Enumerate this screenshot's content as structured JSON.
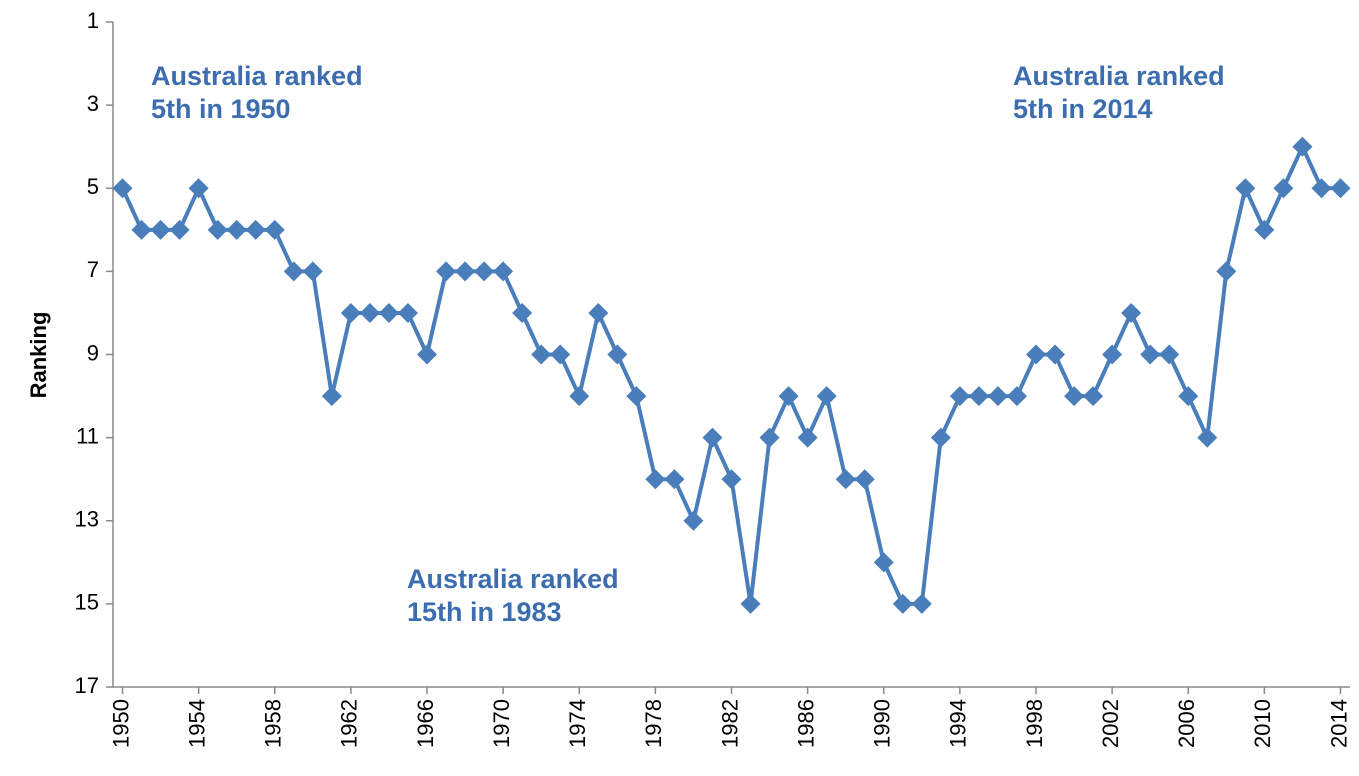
{
  "chart_data": {
    "type": "line",
    "y_label": "Ranking",
    "y_inverted": true,
    "ylim": [
      1,
      17
    ],
    "yticks": [
      1,
      3,
      5,
      7,
      9,
      11,
      13,
      15,
      17
    ],
    "categories": [
      "1950",
      null,
      null,
      null,
      "1954",
      null,
      null,
      null,
      "1958",
      null,
      null,
      null,
      "1962",
      null,
      null,
      null,
      "1966",
      null,
      null,
      null,
      "1970",
      null,
      null,
      null,
      "1974",
      null,
      null,
      null,
      "1978",
      null,
      null,
      null,
      "1982",
      null,
      null,
      null,
      "1986",
      null,
      null,
      null,
      "1990",
      null,
      null,
      null,
      "1994",
      null,
      null,
      null,
      "1998",
      null,
      null,
      null,
      "2002",
      null,
      null,
      null,
      "2006",
      null,
      null,
      null,
      "2010",
      null,
      null,
      null,
      "2014"
    ],
    "series": [
      {
        "name": "Australia",
        "color": "#4a7ebb",
        "values": [
          5,
          6,
          6,
          6,
          5,
          6,
          6,
          6,
          6,
          7,
          7,
          10,
          8,
          8,
          8,
          8,
          9,
          7,
          7,
          7,
          7,
          8,
          9,
          9,
          10,
          8,
          9,
          10,
          12,
          12,
          13,
          11,
          12,
          15,
          11,
          10,
          11,
          10,
          12,
          12,
          14,
          15,
          15,
          11,
          10,
          10,
          10,
          10,
          9,
          9,
          10,
          10,
          9,
          8,
          9,
          9,
          10,
          11,
          7,
          5,
          6,
          5,
          4,
          5,
          5
        ]
      }
    ],
    "annotations": [
      {
        "lines": [
          "Australia ranked",
          "5th in 1950"
        ]
      },
      {
        "lines": [
          "Australia ranked",
          "15th in 1983"
        ]
      },
      {
        "lines": [
          "Australia ranked",
          "5th in 2014"
        ]
      }
    ]
  }
}
